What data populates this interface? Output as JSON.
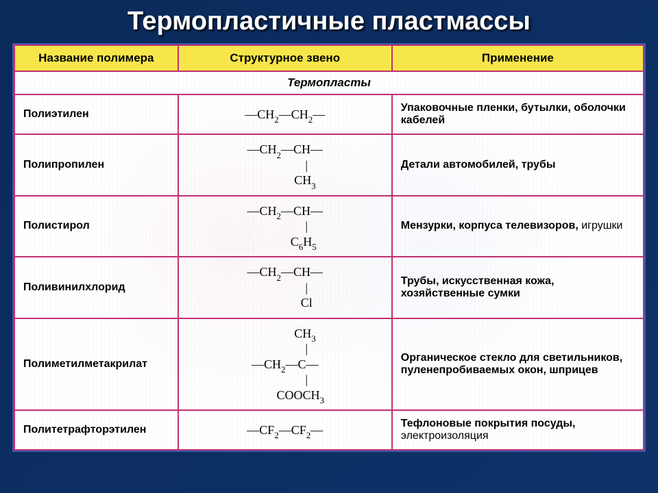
{
  "title": "Термопластичные пластмассы",
  "colors": {
    "page_bg": "#0a2a5a",
    "title_color": "#ffffff",
    "table_border": "#c03070",
    "header_bg": "#f7e64a",
    "outer_border": "#3a5aa8"
  },
  "typography": {
    "title_fontsize": 38,
    "header_fontsize": 17,
    "cell_fontsize": 16,
    "struct_font": "Times New Roman"
  },
  "columns": [
    {
      "key": "name",
      "label": "Название полимера",
      "width_pct": 26,
      "align": "left"
    },
    {
      "key": "structure",
      "label": "Структурное звено",
      "width_pct": 34,
      "align": "center"
    },
    {
      "key": "use",
      "label": "Применение",
      "width_pct": 40,
      "align": "left"
    }
  ],
  "subheading": "Термопласты",
  "rows": [
    {
      "name": "Полиэтилен",
      "structure_html": "—CH<sub>2</sub>—CH<sub>2</sub>—",
      "use": "Упаковочные пленки, бутылки, оболочки кабелей"
    },
    {
      "name": "Полипропилен",
      "structure_html": "—CH<sub>2</sub>—CH—\n              |\n             CH<sub>3</sub>",
      "use": "Детали автомобилей, трубы"
    },
    {
      "name": "Полистирол",
      "structure_html": "—CH<sub>2</sub>—CH—\n              |\n            C<sub>6</sub>H<sub>5</sub>",
      "use": "Мензурки, корпуса телевизоров, игрушки",
      "use_soft_after": "телевизоров,"
    },
    {
      "name": "Поливинилхлорид",
      "structure_html": "—CH<sub>2</sub>—CH—\n              |\n              Cl",
      "use": "Трубы, искусственная кожа, хозяйственные сумки"
    },
    {
      "name": "Полиметилметакрилат",
      "structure_html": "             CH<sub>3</sub>\n              |\n—CH<sub>2</sub>—C—\n              |\n          COOCH<sub>3</sub>",
      "use": "Органическое стекло для светильников, пуленепробиваемых окон, шприцев"
    },
    {
      "name": "Политетрафторэтилен",
      "structure_html": "—CF<sub>2</sub>—CF<sub>2</sub>—",
      "use": "Тефлоновые покрытия посуды, электроизоляция",
      "use_soft_after": "посуды,"
    }
  ]
}
